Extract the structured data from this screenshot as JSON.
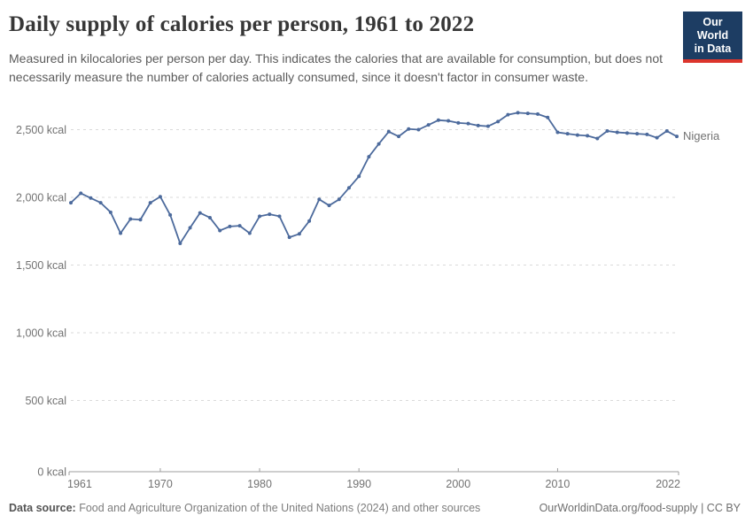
{
  "header": {
    "title": "Daily supply of calories per person, 1961 to 2022",
    "subtitle": "Measured in kilocalories per person per day. This indicates the calories that are available for consumption, but does not necessarily measure the number of calories actually consumed, since it doesn't factor in consumer waste.",
    "logo": {
      "line1": "Our World",
      "line2": "in Data",
      "bg_color": "#1d3d63",
      "accent_color": "#dc352c"
    }
  },
  "chart_data": {
    "type": "line",
    "title": "Daily supply of calories per person, 1961 to 2022",
    "xlabel": "",
    "ylabel": "kcal",
    "x_ticks": [
      1961,
      1970,
      1980,
      1990,
      2000,
      2010,
      2022
    ],
    "y_ticks": [
      0,
      500,
      1000,
      1500,
      2000,
      2500
    ],
    "y_tick_suffix": " kcal",
    "xlim": [
      1961,
      2022
    ],
    "ylim": [
      0,
      2500
    ],
    "grid": "horizontal-dashed",
    "legend_position": "end-of-line-label",
    "x": [
      1961,
      1962,
      1963,
      1964,
      1965,
      1966,
      1967,
      1968,
      1969,
      1970,
      1971,
      1972,
      1973,
      1974,
      1975,
      1976,
      1977,
      1978,
      1979,
      1980,
      1981,
      1982,
      1983,
      1984,
      1985,
      1986,
      1987,
      1988,
      1989,
      1990,
      1991,
      1992,
      1993,
      1994,
      1995,
      1996,
      1997,
      1998,
      1999,
      2000,
      2001,
      2002,
      2003,
      2004,
      2005,
      2006,
      2007,
      2008,
      2009,
      2010,
      2011,
      2012,
      2013,
      2014,
      2015,
      2016,
      2017,
      2018,
      2019,
      2020,
      2021,
      2022
    ],
    "series": [
      {
        "name": "Nigeria",
        "color": "#4c6a9c",
        "label_color": "#5f7ca9",
        "values": [
          1960,
          2030,
          1995,
          1960,
          1890,
          1735,
          1840,
          1835,
          1960,
          2005,
          1870,
          1660,
          1775,
          1885,
          1850,
          1755,
          1785,
          1790,
          1735,
          1860,
          1875,
          1860,
          1705,
          1730,
          1825,
          1985,
          1940,
          1985,
          2070,
          2155,
          2300,
          2395,
          2485,
          2450,
          2505,
          2500,
          2535,
          2570,
          2565,
          2550,
          2545,
          2530,
          2525,
          2560,
          2610,
          2625,
          2620,
          2615,
          2590,
          2480,
          2470,
          2460,
          2455,
          2435,
          2490,
          2480,
          2475,
          2470,
          2465,
          2440,
          2490,
          2450
        ]
      }
    ]
  },
  "footer": {
    "data_source_label": "Data source:",
    "data_source_text": "Food and Agriculture Organization of the United Nations (2024) and other sources",
    "credit": "OurWorldinData.org/food-supply | CC BY"
  }
}
